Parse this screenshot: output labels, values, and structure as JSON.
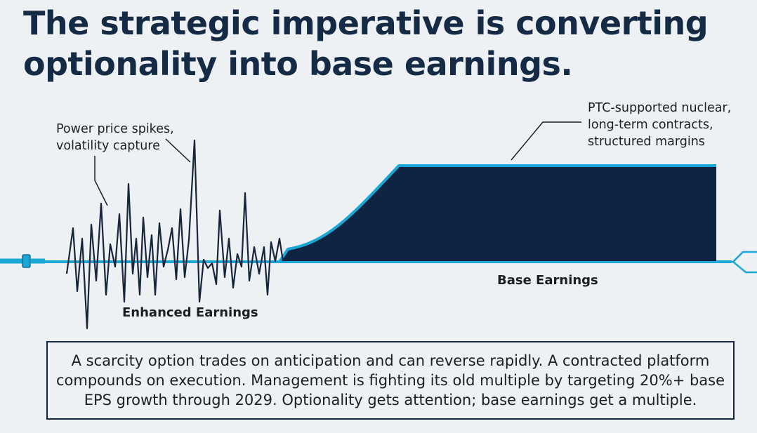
{
  "headline": {
    "line1": "The strategic imperative is converting",
    "line2": "optionality into base earnings."
  },
  "diagram": {
    "left_callout": {
      "line1": "Power price spikes,",
      "line2": "volatility capture"
    },
    "right_callout": {
      "line1": "PTC-supported nuclear,",
      "line2": "long-term contracts,",
      "line3": "structured margins"
    },
    "enhanced_label": "Enhanced Earnings",
    "base_label": "Base Earnings",
    "colors": {
      "accent_cyan": "#1aa7d6",
      "navy_fill": "#0e2442",
      "volatility_line": "#17243a"
    }
  },
  "summary": {
    "line1": "A scarcity option trades on anticipation and can reverse rapidly. A contracted platform",
    "line2": "compounds on execution. Management is fighting its old multiple by targeting 20%+ base",
    "line3": "EPS growth through 2029. Optionality gets attention; base earnings get a multiple."
  }
}
